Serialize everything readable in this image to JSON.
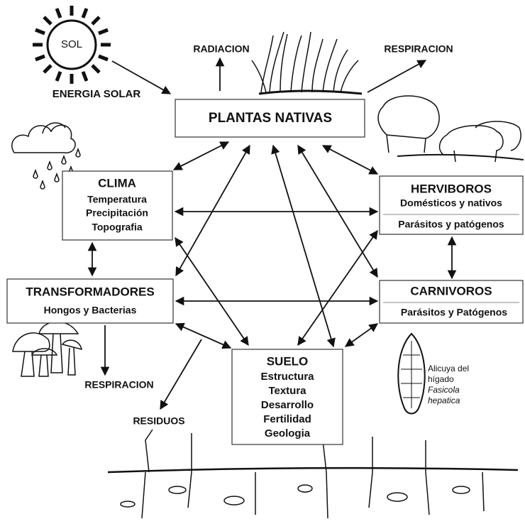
{
  "sun": {
    "label": "SOL"
  },
  "labels": {
    "solar_energy": "ENERGIA SOLAR",
    "radiation": "RADIACION",
    "respiration_top": "RESPIRACION",
    "respiration_bottom": "RESPIRACION",
    "residues": "RESIDUOS"
  },
  "plants": {
    "title": "PLANTAS NATIVAS"
  },
  "climate": {
    "title": "CLIMA",
    "lines": [
      "Temperatura",
      "Precipitación",
      "Topografia"
    ]
  },
  "herbivores": {
    "title": "HERVIBOROS",
    "lines": [
      "Domésticos y nativos",
      "Parásitos y patógenos"
    ]
  },
  "transformers": {
    "title": "TRANSFORMADORES",
    "lines": [
      "Hongos y Bacterias"
    ]
  },
  "carnivores": {
    "title": "CARNIVOROS",
    "lines": [
      "Parásitos y Patógenos"
    ]
  },
  "soil": {
    "title": "SUELO",
    "lines": [
      "Estructura",
      "Textura",
      "Desarrollo",
      "Fertilidad",
      "Geologia"
    ]
  },
  "parasite": {
    "caption": [
      "Alicuya del",
      "hígado"
    ],
    "species": [
      "Fasicola",
      "hepatica"
    ]
  }
}
